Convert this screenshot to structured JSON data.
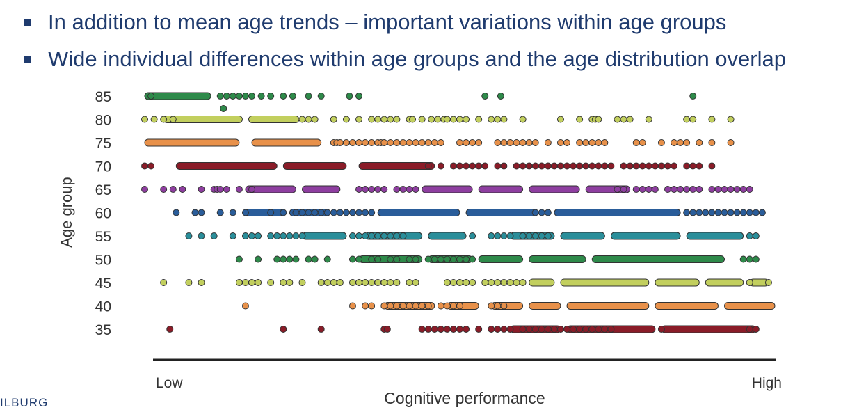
{
  "bullets": [
    "In addition to mean age trends – important variations within age groups",
    "Wide individual differences within age groups and the age distribution overlap"
  ],
  "logo_text": "ILBURG",
  "chart_data": {
    "type": "scatter",
    "ylabel": "Age group",
    "xlabel": "Cognitive performance",
    "x_tick_low": "Low",
    "x_tick_high": "High",
    "xlim": [
      0,
      1
    ],
    "categories": [
      "85",
      "80",
      "75",
      "70",
      "65",
      "60",
      "55",
      "50",
      "45",
      "40",
      "35"
    ],
    "series": [
      {
        "age": "85",
        "color": "#2e8a4a",
        "dots": [
          0.01,
          0.12,
          0.13,
          0.14,
          0.15,
          0.16,
          0.17,
          0.185,
          0.2,
          0.22,
          0.235,
          0.26,
          0.28,
          0.325,
          0.34,
          0.54,
          0.565,
          0.87
        ],
        "segments": [
          [
            0.0,
            0.105
          ]
        ],
        "extra": [
          0.125
        ]
      },
      {
        "age": "80",
        "color": "#c2cf5e",
        "dots": [
          0.0,
          0.015,
          0.03,
          0.045,
          0.25,
          0.26,
          0.27,
          0.3,
          0.3,
          0.32,
          0.34,
          0.36,
          0.37,
          0.38,
          0.39,
          0.4,
          0.42,
          0.425,
          0.44,
          0.455,
          0.465,
          0.475,
          0.48,
          0.49,
          0.5,
          0.51,
          0.53,
          0.55,
          0.56,
          0.57,
          0.6,
          0.66,
          0.69,
          0.71,
          0.715,
          0.72,
          0.75,
          0.76,
          0.77,
          0.8,
          0.86,
          0.87,
          0.9,
          0.93
        ],
        "segments": [
          [
            0.03,
            0.155
          ],
          [
            0.165,
            0.245
          ]
        ]
      },
      {
        "age": "75",
        "color": "#e8914a",
        "dots": [
          0.3,
          0.305,
          0.31,
          0.32,
          0.33,
          0.34,
          0.35,
          0.36,
          0.37,
          0.375,
          0.38,
          0.39,
          0.4,
          0.41,
          0.42,
          0.43,
          0.44,
          0.45,
          0.46,
          0.47,
          0.5,
          0.51,
          0.52,
          0.53,
          0.56,
          0.57,
          0.58,
          0.59,
          0.6,
          0.61,
          0.62,
          0.64,
          0.66,
          0.67,
          0.69,
          0.7,
          0.71,
          0.72,
          0.73,
          0.78,
          0.79,
          0.82,
          0.84,
          0.85,
          0.86,
          0.88,
          0.9,
          0.93
        ],
        "segments": [
          [
            0.0,
            0.15
          ],
          [
            0.17,
            0.28
          ]
        ]
      },
      {
        "age": "70",
        "color": "#8a1c28",
        "dots": [
          0.0,
          0.01,
          0.45,
          0.47,
          0.49,
          0.5,
          0.51,
          0.52,
          0.53,
          0.54,
          0.56,
          0.57,
          0.59,
          0.6,
          0.61,
          0.62,
          0.63,
          0.64,
          0.65,
          0.66,
          0.67,
          0.68,
          0.69,
          0.7,
          0.71,
          0.72,
          0.73,
          0.74,
          0.76,
          0.77,
          0.78,
          0.79,
          0.8,
          0.81,
          0.82,
          0.83,
          0.84,
          0.86,
          0.87,
          0.88,
          0.9
        ],
        "segments": [
          [
            0.05,
            0.21
          ],
          [
            0.22,
            0.32
          ],
          [
            0.34,
            0.46
          ]
        ]
      },
      {
        "age": "65",
        "color": "#8e3ea0",
        "dots": [
          0.0,
          0.03,
          0.045,
          0.06,
          0.09,
          0.11,
          0.115,
          0.12,
          0.13,
          0.15,
          0.17,
          0.34,
          0.35,
          0.36,
          0.37,
          0.38,
          0.4,
          0.41,
          0.42,
          0.43,
          0.75,
          0.76,
          0.78,
          0.79,
          0.8,
          0.81,
          0.83,
          0.84,
          0.85,
          0.86,
          0.87,
          0.88,
          0.9,
          0.91,
          0.92,
          0.93,
          0.94,
          0.95,
          0.96
        ],
        "segments": [
          [
            0.16,
            0.24
          ],
          [
            0.25,
            0.31
          ],
          [
            0.44,
            0.52
          ],
          [
            0.53,
            0.6
          ],
          [
            0.61,
            0.69
          ],
          [
            0.7,
            0.77
          ]
        ]
      },
      {
        "age": "60",
        "color": "#2a5d9a",
        "dots": [
          0.05,
          0.08,
          0.09,
          0.12,
          0.14,
          0.16,
          0.2,
          0.22,
          0.24,
          0.25,
          0.26,
          0.27,
          0.28,
          0.29,
          0.3,
          0.31,
          0.32,
          0.33,
          0.34,
          0.35,
          0.36,
          0.62,
          0.63,
          0.64,
          0.86,
          0.87,
          0.88,
          0.89,
          0.9,
          0.91,
          0.92,
          0.93,
          0.94,
          0.95,
          0.96,
          0.97,
          0.98
        ],
        "segments": [
          [
            0.16,
            0.22
          ],
          [
            0.23,
            0.29
          ],
          [
            0.37,
            0.5
          ],
          [
            0.51,
            0.62
          ],
          [
            0.65,
            0.85
          ]
        ]
      },
      {
        "age": "55",
        "color": "#2a8e9a",
        "dots": [
          0.07,
          0.09,
          0.11,
          0.14,
          0.16,
          0.17,
          0.18,
          0.2,
          0.21,
          0.22,
          0.23,
          0.24,
          0.25,
          0.33,
          0.34,
          0.35,
          0.36,
          0.37,
          0.38,
          0.39,
          0.4,
          0.41,
          0.52,
          0.55,
          0.56,
          0.57,
          0.58,
          0.6,
          0.61,
          0.62,
          0.63,
          0.64,
          0.96,
          0.97
        ],
        "segments": [
          [
            0.25,
            0.32
          ],
          [
            0.35,
            0.44
          ],
          [
            0.45,
            0.51
          ],
          [
            0.58,
            0.65
          ],
          [
            0.66,
            0.73
          ],
          [
            0.74,
            0.85
          ],
          [
            0.86,
            0.95
          ]
        ]
      },
      {
        "age": "50",
        "color": "#2e8a4a",
        "dots": [
          0.15,
          0.18,
          0.21,
          0.22,
          0.23,
          0.24,
          0.26,
          0.27,
          0.29,
          0.33,
          0.34,
          0.36,
          0.37,
          0.39,
          0.4,
          0.42,
          0.43,
          0.45,
          0.46,
          0.47,
          0.48,
          0.49,
          0.5,
          0.51,
          0.52,
          0.95,
          0.96,
          0.97
        ],
        "segments": [
          [
            0.34,
            0.44
          ],
          [
            0.45,
            0.52
          ],
          [
            0.53,
            0.6
          ],
          [
            0.61,
            0.7
          ],
          [
            0.71,
            0.92
          ]
        ]
      },
      {
        "age": "45",
        "color": "#c2cf5e",
        "dots": [
          0.03,
          0.07,
          0.09,
          0.15,
          0.16,
          0.17,
          0.18,
          0.2,
          0.22,
          0.23,
          0.25,
          0.28,
          0.29,
          0.3,
          0.31,
          0.33,
          0.34,
          0.35,
          0.36,
          0.37,
          0.38,
          0.39,
          0.4,
          0.42,
          0.43,
          0.48,
          0.49,
          0.5,
          0.51,
          0.52,
          0.54,
          0.55,
          0.56,
          0.57,
          0.58,
          0.59,
          0.6,
          0.96,
          0.99
        ],
        "segments": [
          [
            0.61,
            0.65
          ],
          [
            0.66,
            0.8
          ],
          [
            0.81,
            0.88
          ],
          [
            0.89,
            0.95
          ],
          [
            0.96,
            0.99
          ]
        ]
      },
      {
        "age": "40",
        "color": "#e8914a",
        "dots": [
          0.16,
          0.33,
          0.35,
          0.36,
          0.38,
          0.39,
          0.4,
          0.41,
          0.42,
          0.43,
          0.44,
          0.45,
          0.47,
          0.48,
          0.49,
          0.5,
          0.55,
          0.56,
          0.57
        ],
        "segments": [
          [
            0.38,
            0.46
          ],
          [
            0.48,
            0.53
          ],
          [
            0.55,
            0.6
          ],
          [
            0.61,
            0.66
          ],
          [
            0.67,
            0.8
          ],
          [
            0.81,
            0.91
          ],
          [
            0.92,
            1.0
          ]
        ]
      },
      {
        "age": "35",
        "color": "#8a1c28",
        "dots": [
          0.04,
          0.22,
          0.28,
          0.38,
          0.385,
          0.44,
          0.45,
          0.46,
          0.47,
          0.48,
          0.49,
          0.5,
          0.51,
          0.53,
          0.55,
          0.56,
          0.57,
          0.58,
          0.6,
          0.61,
          0.62,
          0.63,
          0.64,
          0.65,
          0.66,
          0.67,
          0.68,
          0.69,
          0.7,
          0.71,
          0.72,
          0.73,
          0.74,
          0.82,
          0.96,
          0.97
        ],
        "segments": [
          [
            0.58,
            0.66
          ],
          [
            0.67,
            0.81
          ],
          [
            0.82,
            0.97
          ]
        ]
      }
    ]
  }
}
